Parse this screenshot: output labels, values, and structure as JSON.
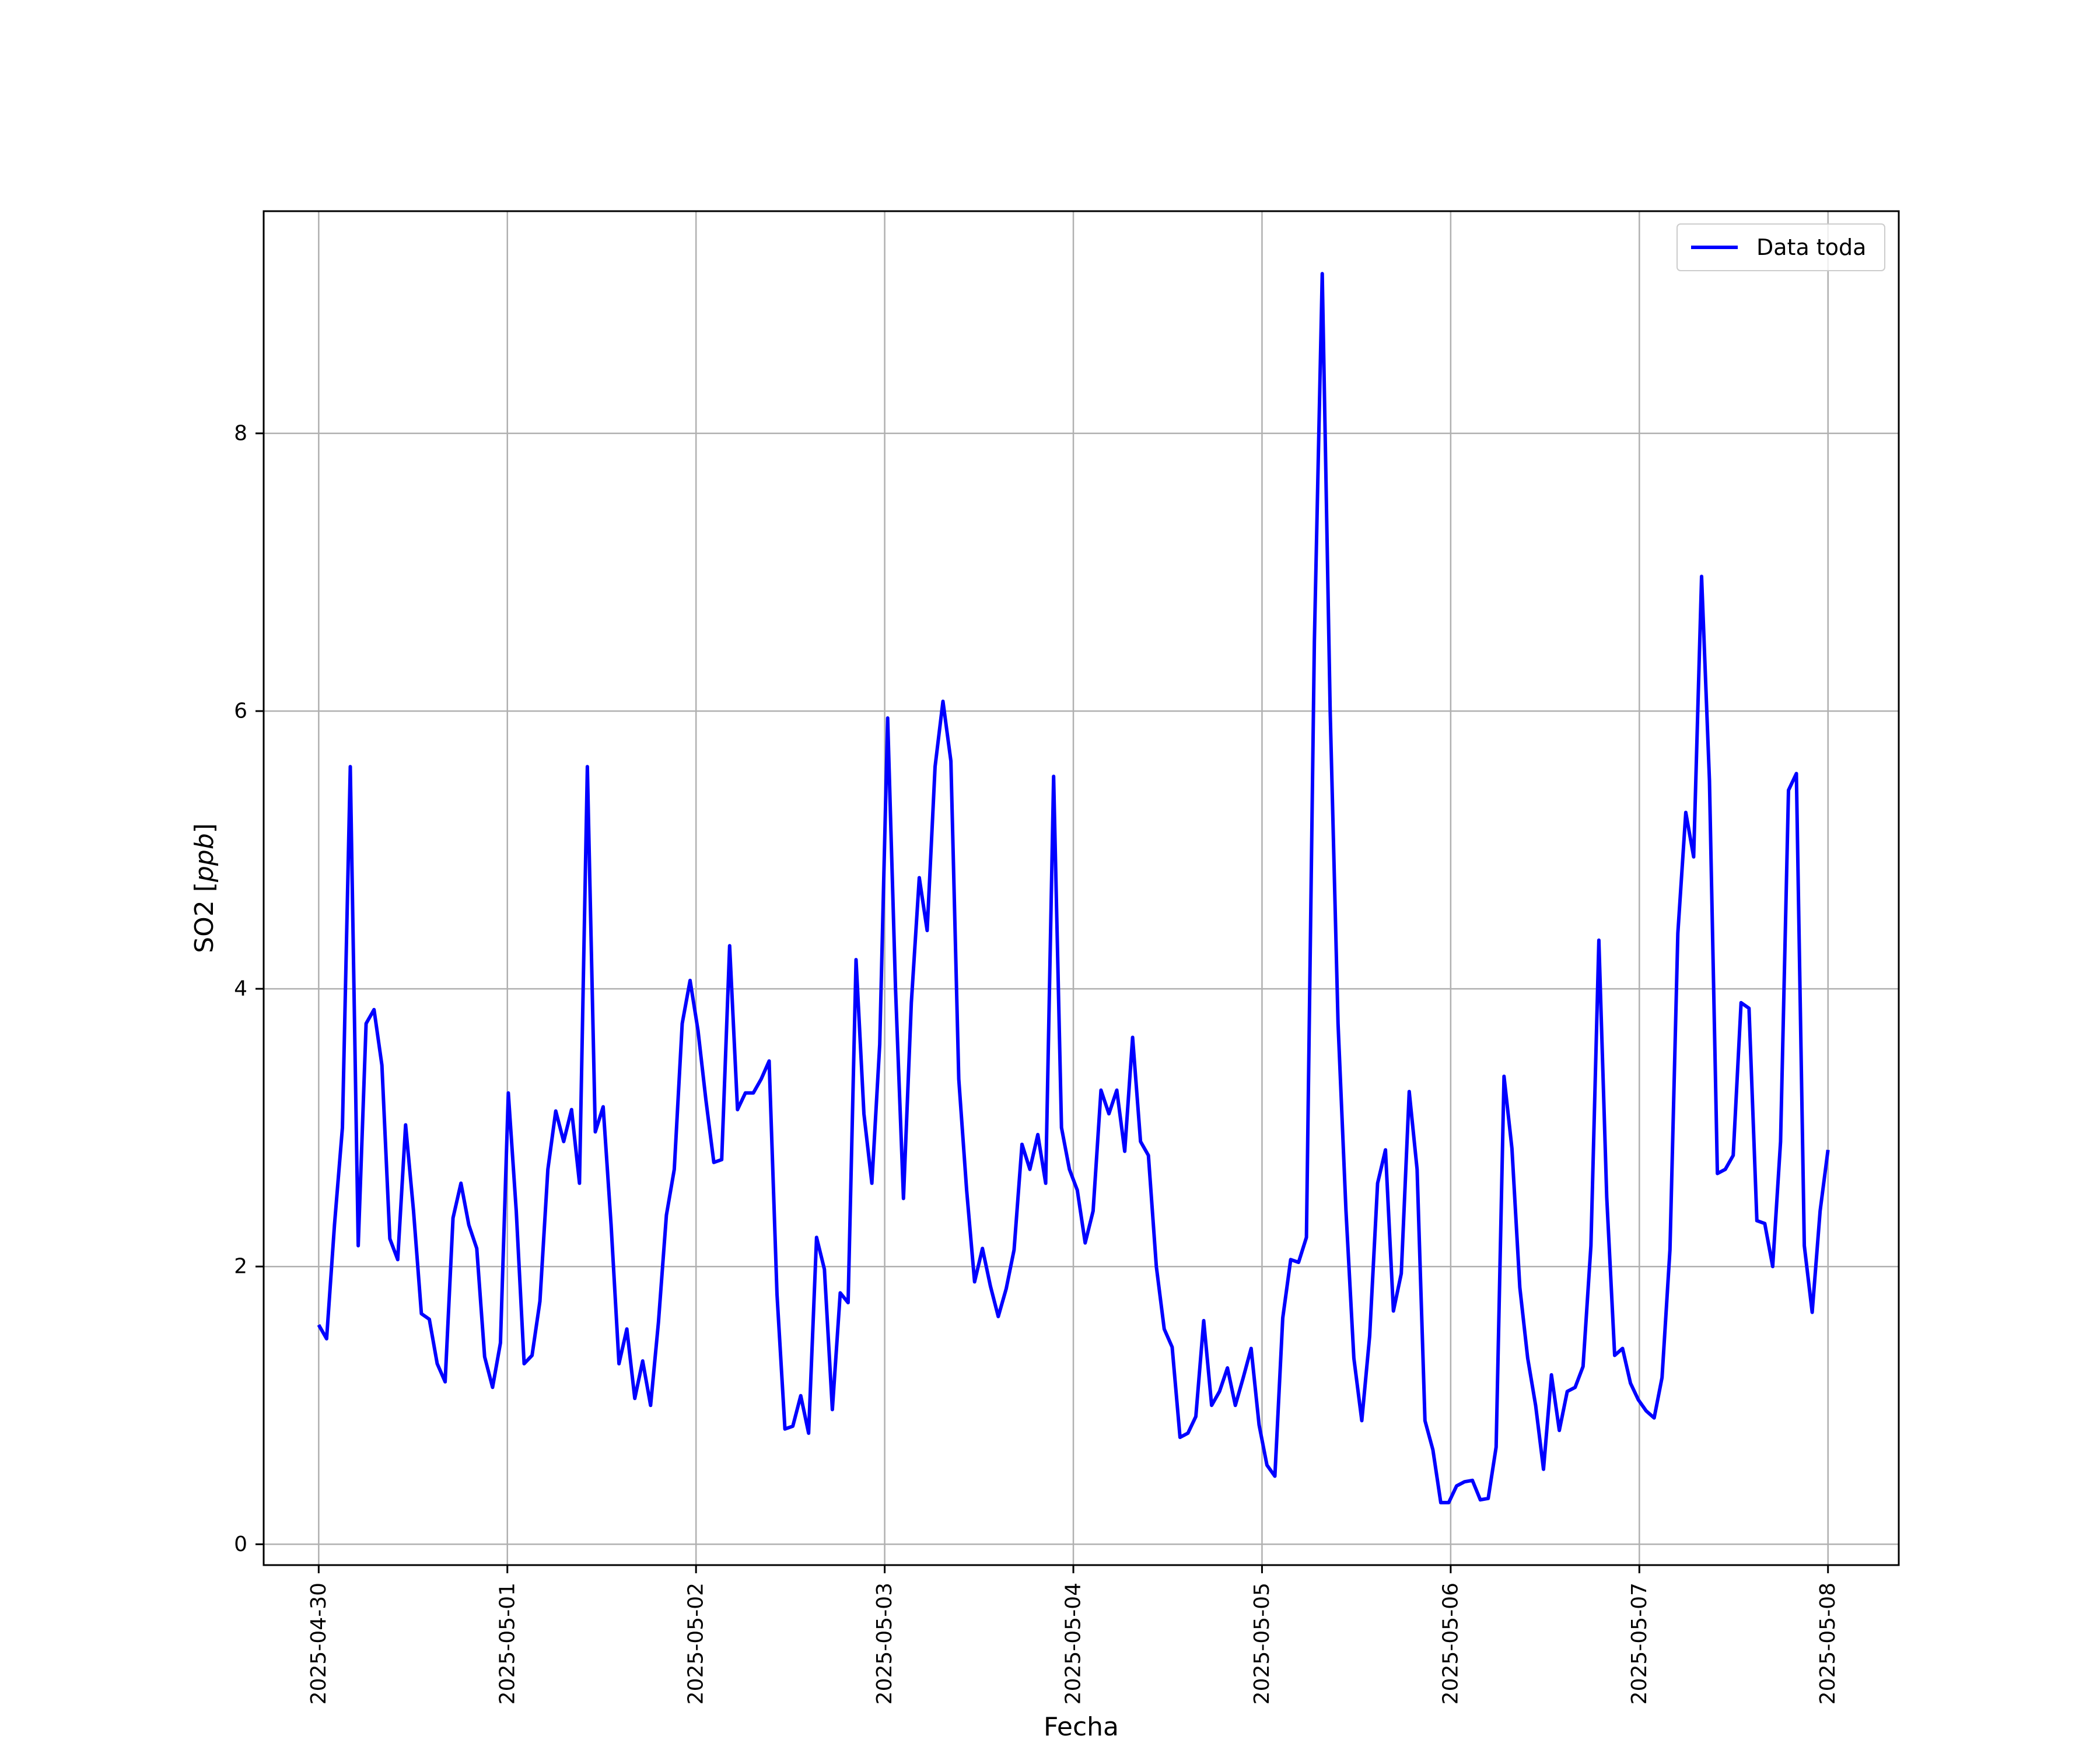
{
  "chart_data": {
    "type": "line",
    "title": "",
    "xlabel": "Fecha",
    "ylabel_prefix": "SO2 [",
    "ylabel_unit": "ppb",
    "ylabel_suffix": "]",
    "x_start": "2025-04-30T00:00",
    "x_end": "2025-05-08T00:00",
    "x_ticks": [
      "2025-04-30",
      "2025-05-01",
      "2025-05-02",
      "2025-05-03",
      "2025-05-04",
      "2025-05-05",
      "2025-05-06",
      "2025-05-07",
      "2025-05-08"
    ],
    "y_ticks": [
      0,
      2,
      4,
      6,
      8
    ],
    "xlim": [
      "2025-04-29T17:00",
      "2025-05-08T09:00"
    ],
    "ylim": [
      -0.15,
      9.6
    ],
    "grid": true,
    "legend": "top-right",
    "line_color": "#0000ff",
    "series": [
      {
        "name": "Data toda",
        "x_step_hours": 1,
        "values": [
          1.58,
          1.48,
          2.3,
          3.0,
          5.6,
          2.15,
          3.75,
          3.85,
          3.45,
          2.2,
          2.05,
          3.02,
          2.4,
          1.66,
          1.62,
          1.3,
          1.17,
          2.35,
          2.6,
          2.3,
          2.13,
          1.35,
          1.13,
          1.45,
          3.25,
          2.4,
          1.3,
          1.36,
          1.75,
          2.7,
          3.12,
          2.9,
          3.13,
          2.6,
          5.6,
          2.97,
          3.15,
          2.3,
          1.3,
          1.55,
          1.05,
          1.32,
          1.0,
          1.6,
          2.37,
          2.7,
          3.75,
          4.06,
          3.7,
          3.2,
          2.75,
          2.77,
          4.31,
          3.13,
          3.25,
          3.25,
          3.35,
          3.48,
          1.8,
          0.83,
          0.85,
          1.07,
          0.8,
          2.21,
          1.98,
          0.97,
          1.81,
          1.74,
          4.21,
          3.1,
          2.6,
          3.6,
          5.95,
          4.0,
          2.49,
          3.9,
          4.8,
          4.42,
          5.6,
          6.07,
          5.64,
          3.35,
          2.55,
          1.89,
          2.13,
          1.86,
          1.64,
          1.84,
          2.12,
          2.88,
          2.7,
          2.95,
          2.6,
          5.53,
          3.0,
          2.7,
          2.55,
          2.17,
          2.4,
          3.27,
          3.1,
          3.27,
          2.83,
          3.65,
          2.9,
          2.8,
          2.0,
          1.55,
          1.42,
          0.77,
          0.8,
          0.92,
          1.61,
          1.0,
          1.1,
          1.27,
          1.0,
          1.2,
          1.41,
          0.86,
          0.57,
          0.49,
          1.63,
          2.05,
          2.03,
          2.21,
          6.5,
          9.15,
          6.0,
          3.75,
          2.4,
          1.34,
          0.89,
          1.5,
          2.6,
          2.84,
          1.68,
          1.95,
          3.26,
          2.7,
          0.89,
          0.68,
          0.3,
          0.3,
          0.42,
          0.45,
          0.46,
          0.32,
          0.33,
          0.7,
          3.37,
          2.85,
          1.85,
          1.34,
          1.0,
          0.54,
          1.22,
          0.82,
          1.1,
          1.13,
          1.28,
          2.15,
          4.35,
          2.5,
          1.36,
          1.41,
          1.16,
          1.04,
          0.96,
          0.91,
          1.2,
          2.12,
          4.4,
          5.27,
          4.95,
          6.97,
          5.5,
          2.67,
          2.7,
          2.8,
          3.9,
          3.86,
          2.33,
          2.31,
          2.0,
          2.9,
          5.43,
          5.55,
          2.15,
          1.67,
          2.4,
          2.84
        ]
      }
    ]
  }
}
